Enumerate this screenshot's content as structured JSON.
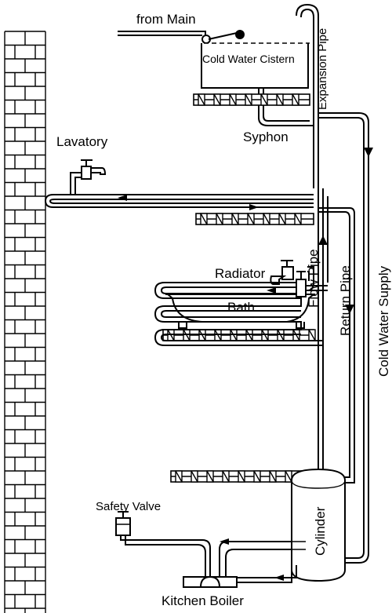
{
  "diagram": {
    "labels": {
      "from_main": "from Main",
      "cold_water_cistern": "Cold Water Cistern",
      "expansion_pipe": "Expansion Pipe",
      "syphon": "Syphon",
      "lavatory": "Lavatory",
      "bath": "Bath",
      "flow_pipe": "Flow Pipe",
      "return_pipe": "Return Pipe",
      "cold_water_supply": "Cold Water Supply",
      "radiator": "Radiator",
      "safety_valve": "Safety Valve",
      "cylinder": "Cylinder",
      "kitchen_boiler": "Kitchen Boiler"
    }
  }
}
